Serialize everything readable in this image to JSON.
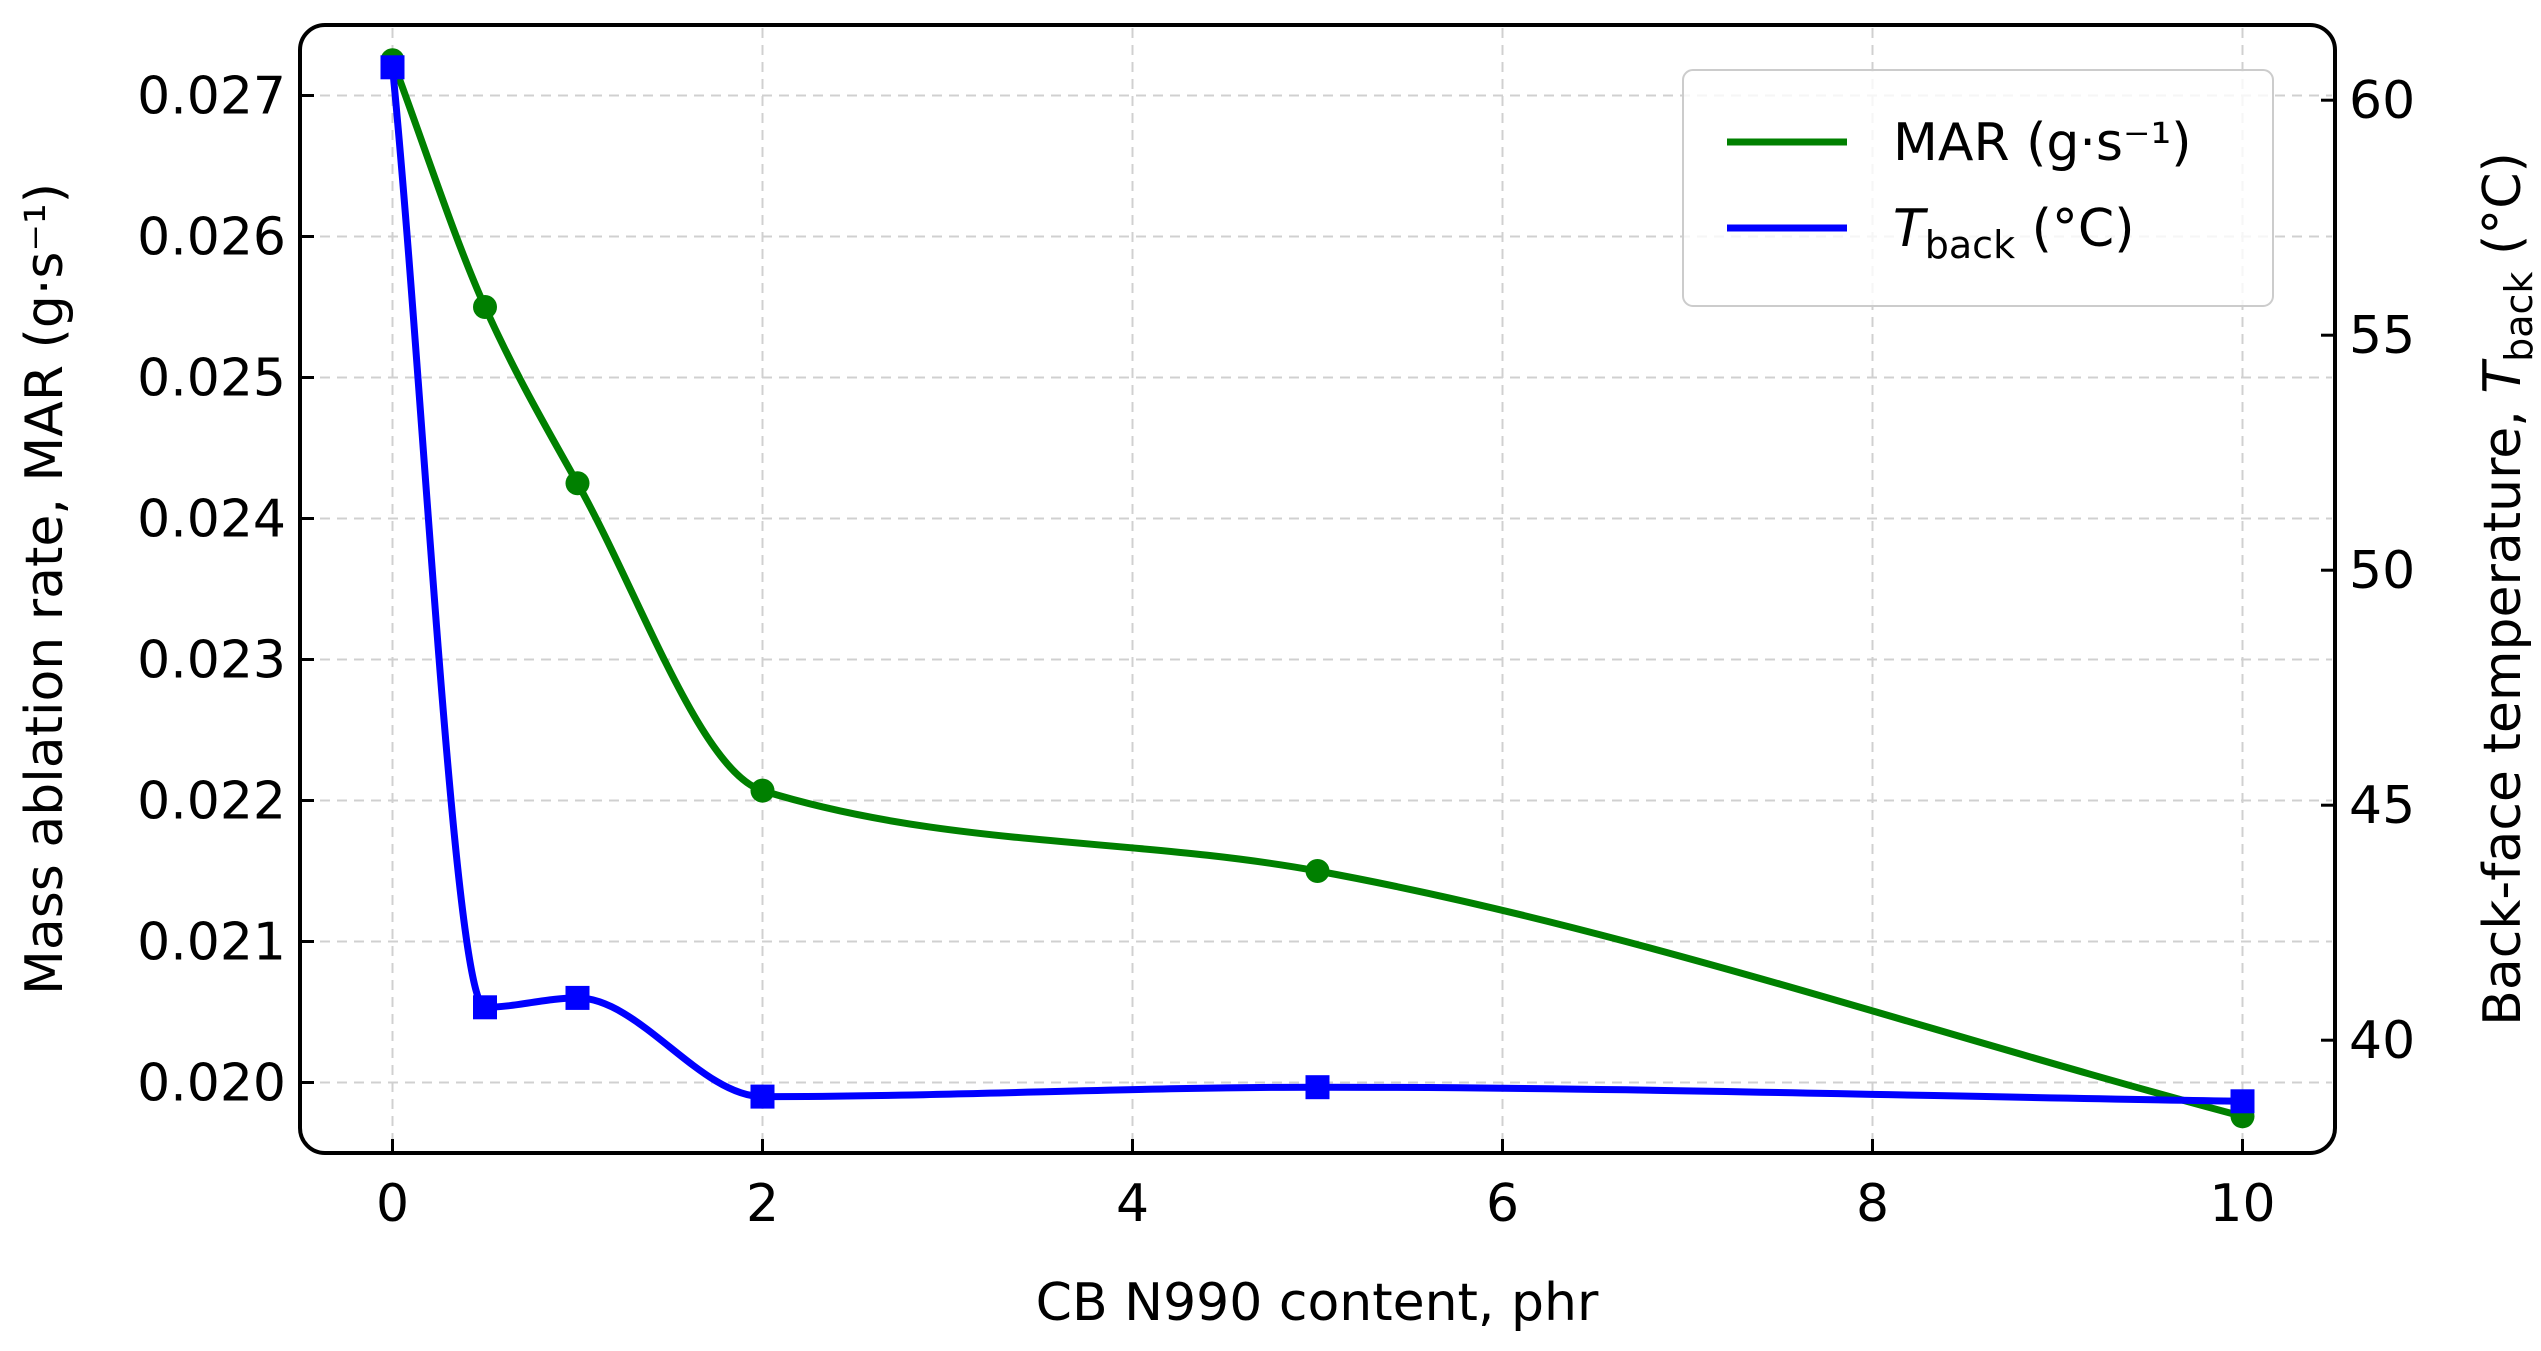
{
  "chart_data": {
    "type": "line",
    "xlabel": "CB N990 content, phr",
    "ylabel_left": "Mass ablation rate, MAR (g·s⁻¹)",
    "ylabel_right": {
      "prefix": "Back-face temperature, ",
      "T": "T",
      "sub": "back",
      "suffix": " (°C)"
    },
    "x": [
      0,
      0.5,
      1,
      2,
      5,
      10
    ],
    "xlim": [
      -0.5,
      10.5
    ],
    "xticks": [
      0,
      2,
      4,
      6,
      8,
      10
    ],
    "xtick_labels": [
      "0",
      "2",
      "4",
      "6",
      "8",
      "10"
    ],
    "ylim_left": [
      0.0195,
      0.0275
    ],
    "yticks_left": [
      0.02,
      0.021,
      0.022,
      0.023,
      0.024,
      0.025,
      0.026,
      0.027
    ],
    "ytick_labels_left": [
      "0.020",
      "0.021",
      "0.022",
      "0.023",
      "0.024",
      "0.025",
      "0.026",
      "0.027"
    ],
    "ylim_right": [
      37.6,
      61.6
    ],
    "yticks_right": [
      40,
      45,
      50,
      55,
      60
    ],
    "ytick_labels_right": [
      "40",
      "45",
      "50",
      "55",
      "60"
    ],
    "grid": true,
    "legend_position": "top-right",
    "series": [
      {
        "name": "MAR (g·s⁻¹)",
        "axis": "left",
        "color": "#008000",
        "marker": "circle",
        "values": [
          0.02725,
          0.0255,
          0.02425,
          0.02207,
          0.0215,
          0.01976
        ]
      },
      {
        "name_T": "T",
        "name_sub": "back",
        "name_suffix": " (°C)",
        "axis": "right",
        "color": "#0000ff",
        "marker": "square",
        "values": [
          60.7,
          40.7,
          40.9,
          38.8,
          39.0,
          38.7
        ]
      }
    ]
  }
}
